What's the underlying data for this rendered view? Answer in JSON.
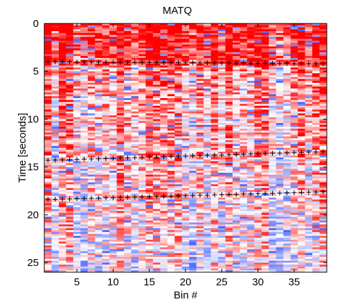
{
  "chart_data": {
    "type": "heatmap",
    "title": "MATQ",
    "xlabel": "Bin #",
    "ylabel": "Time [seconds]",
    "xlim": [
      0.5,
      39.5
    ],
    "ylim": [
      0,
      26
    ],
    "y_reversed": true,
    "x_ticks": [
      5,
      10,
      15,
      20,
      25,
      30,
      35
    ],
    "y_ticks": [
      0,
      5,
      10,
      15,
      20,
      25
    ],
    "colormap": {
      "low": "#3050ff",
      "mid": "#ffffff",
      "high": "#ff0000"
    },
    "bins": 39,
    "markers": {
      "symbol": "+",
      "color": "#000000",
      "series": [
        {
          "y_start": 4.0,
          "y_end": 4.2
        },
        {
          "y_start": 14.3,
          "y_end": 13.4
        },
        {
          "y_start": 18.4,
          "y_end": 17.6
        }
      ]
    }
  }
}
